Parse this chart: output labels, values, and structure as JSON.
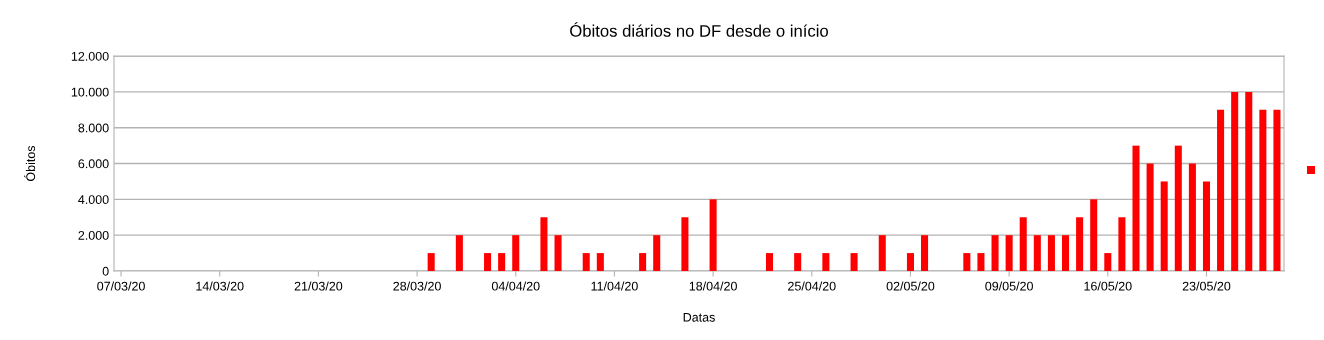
{
  "chart_data": {
    "type": "bar",
    "title": "Óbitos diários no DF desde o início",
    "xlabel": "Datas",
    "ylabel": "Óbitos",
    "categories": [
      "07/03/20",
      null,
      null,
      null,
      null,
      null,
      null,
      "14/03/20",
      null,
      null,
      null,
      null,
      null,
      null,
      "21/03/20",
      null,
      null,
      null,
      null,
      null,
      null,
      "28/03/20",
      null,
      null,
      null,
      null,
      null,
      null,
      "04/04/20",
      null,
      null,
      null,
      null,
      null,
      null,
      "11/04/20",
      null,
      null,
      null,
      null,
      null,
      null,
      "18/04/20",
      null,
      null,
      null,
      null,
      null,
      null,
      "25/04/20",
      null,
      null,
      null,
      null,
      null,
      null,
      "02/05/20",
      null,
      null,
      null,
      null,
      null,
      null,
      "09/05/20",
      null,
      null,
      null,
      null,
      null,
      null,
      "16/05/20",
      null,
      null,
      null,
      null,
      null,
      null,
      "23/05/20",
      null,
      null,
      null,
      null,
      null
    ],
    "series": [
      {
        "color": "#ff0000",
        "values": [
          0,
          0,
          0,
          0,
          0,
          0,
          0,
          0,
          0,
          0,
          0,
          0,
          0,
          0,
          0,
          0,
          0,
          0,
          0,
          0,
          0,
          0,
          1000,
          0,
          2000,
          0,
          1000,
          1000,
          2000,
          0,
          3000,
          2000,
          0,
          1000,
          1000,
          0,
          0,
          1000,
          2000,
          0,
          3000,
          0,
          4000,
          0,
          0,
          0,
          1000,
          0,
          1000,
          0,
          1000,
          0,
          1000,
          0,
          2000,
          0,
          1000,
          2000,
          0,
          0,
          1000,
          1000,
          2000,
          2000,
          3000,
          2000,
          2000,
          2000,
          3000,
          4000,
          1000,
          3000,
          7000,
          6000,
          5000,
          7000,
          6000,
          5000,
          9000,
          10000,
          10000,
          9000,
          9000
        ]
      }
    ],
    "ylim": [
      0,
      12000
    ],
    "yticks": [
      0,
      {
        "value": 2000,
        "label": "2.000"
      },
      {
        "value": 4000,
        "label": "4.000"
      },
      {
        "value": 6000,
        "label": "6.000"
      },
      {
        "value": 8000,
        "label": "8.000"
      },
      {
        "value": 10000,
        "label": "10.000"
      },
      {
        "value": 12000,
        "label": "12.000"
      }
    ],
    "grid": "y"
  }
}
